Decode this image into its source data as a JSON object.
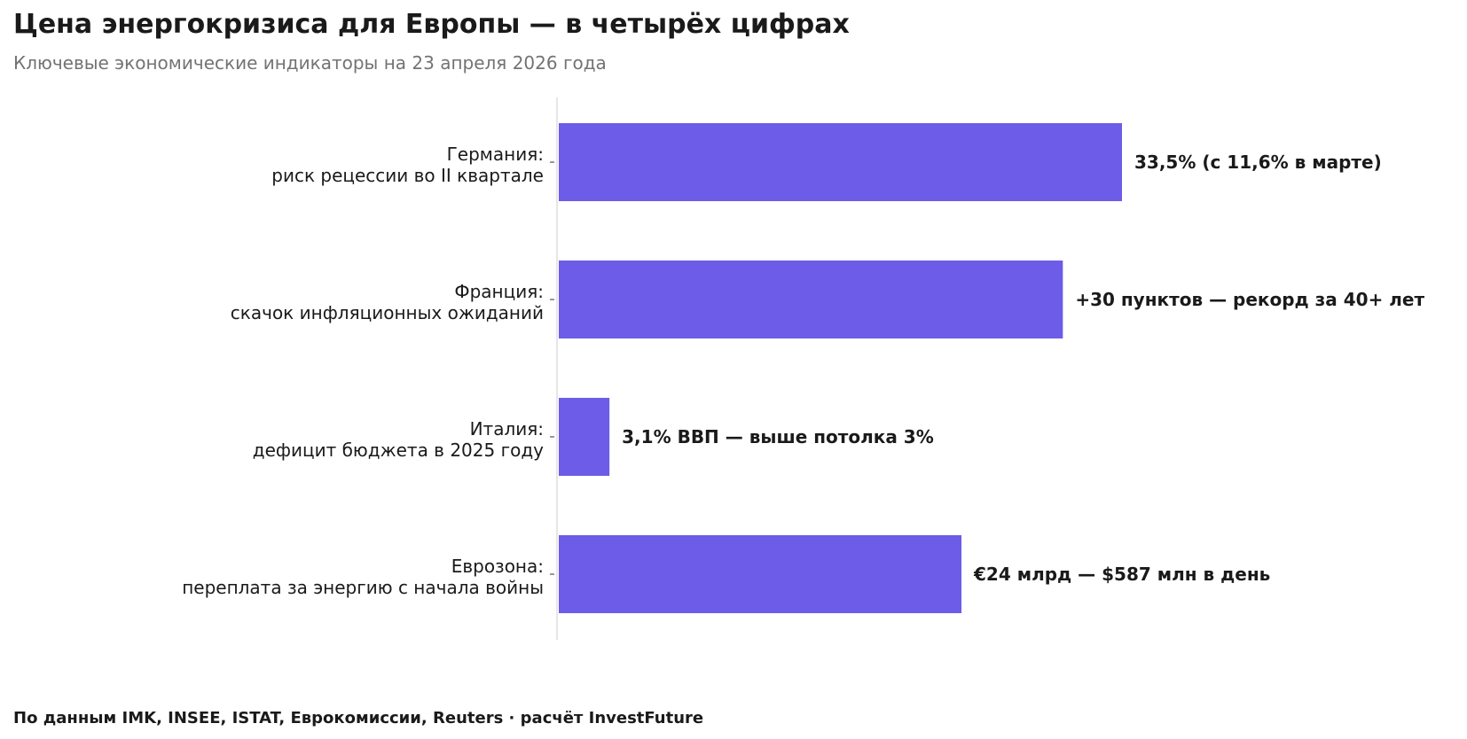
{
  "chart_data": {
    "type": "bar",
    "orientation": "horizontal",
    "title": "Цена энергокризиса для Европы — в четырёх цифрах",
    "subtitle": "Ключевые экономические индикаторы на 23 апреля 2026 года",
    "categories": [
      [
        "Германия:",
        "риск рецессии во II квартале"
      ],
      [
        "Франция:",
        "скачок инфляционных ожиданий"
      ],
      [
        "Италия:",
        "дефицит бюджета в 2025 году"
      ],
      [
        "Еврозона:",
        "переплата за энергию с начала войны"
      ]
    ],
    "values": [
      100,
      89.5,
      9,
      71.5
    ],
    "value_labels": [
      "33,5% (с 11,6% в марте)",
      "+30 пунктов — рекорд за 40+ лет",
      "3,1% ВВП — выше потолка 3%",
      "€24 млрд — $587 млн в день"
    ],
    "xlim": [
      0,
      100
    ],
    "grid": false,
    "legend": "none",
    "bar_color": "#6c5ce7",
    "axis_color": "#dddddd"
  },
  "footer": "По данным IMK, INSEE, ISTAT, Еврокомиссии, Reuters · расчёт InvestFuture"
}
